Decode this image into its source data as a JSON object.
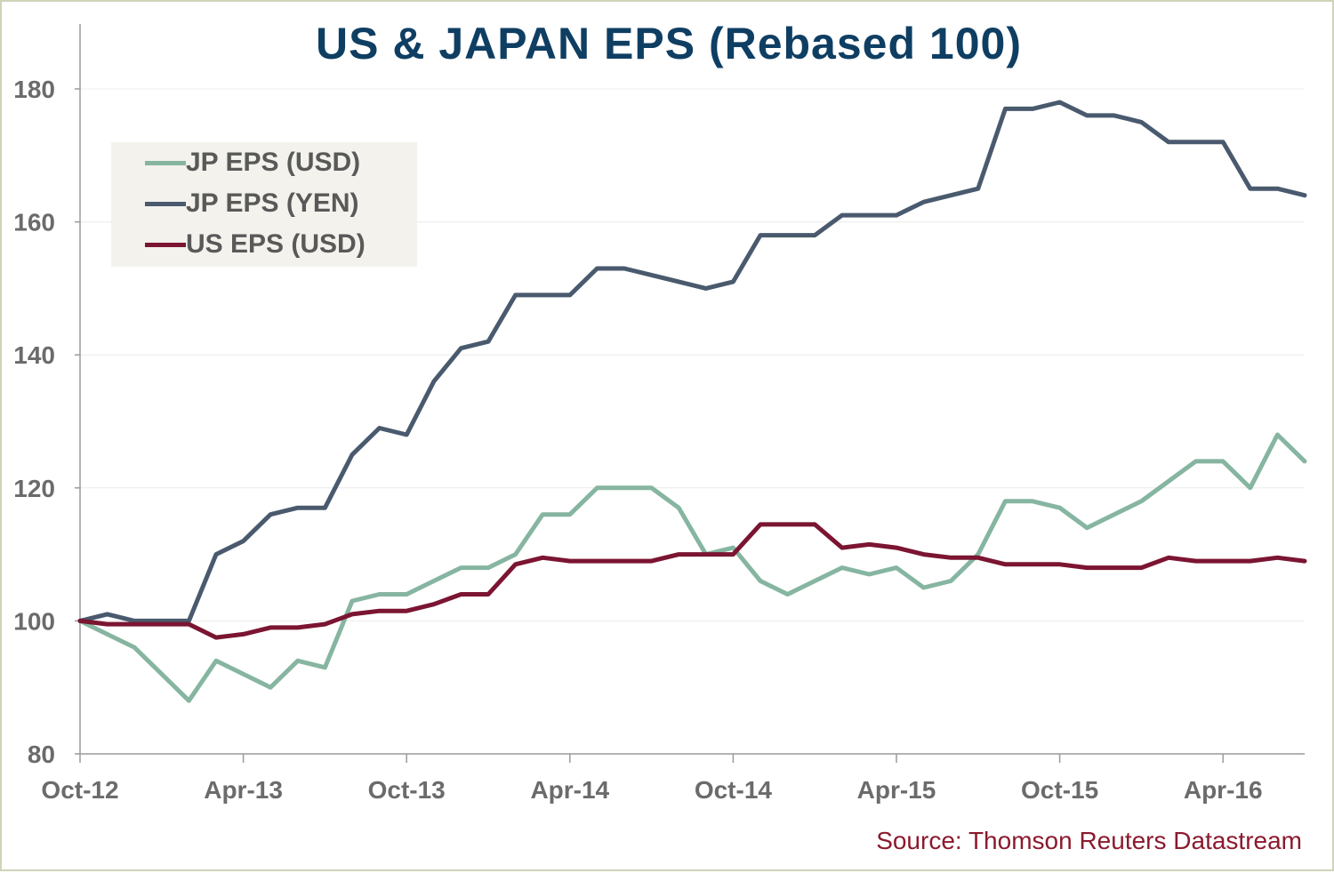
{
  "chart_data": {
    "type": "line",
    "title": "US & JAPAN EPS (Rebased 100)",
    "source": "Source: Thomson Reuters Datastream",
    "xlabel": "",
    "ylabel": "",
    "ylim": [
      80,
      180
    ],
    "yticks": [
      80,
      100,
      120,
      140,
      160,
      180
    ],
    "xlim": [
      "2012-10",
      "2016-07"
    ],
    "xticks": [
      {
        "label": "Oct-12",
        "x": "2012-10"
      },
      {
        "label": "Apr-13",
        "x": "2013-04"
      },
      {
        "label": "Oct-13",
        "x": "2013-10"
      },
      {
        "label": "Apr-14",
        "x": "2014-04"
      },
      {
        "label": "Oct-14",
        "x": "2014-10"
      },
      {
        "label": "Apr-15",
        "x": "2015-04"
      },
      {
        "label": "Oct-15",
        "x": "2015-10"
      },
      {
        "label": "Apr-16",
        "x": "2016-04"
      }
    ],
    "grid": true,
    "legend_position": "top-left",
    "series": [
      {
        "name": "JP EPS (USD)",
        "color": "#86b5a1",
        "points": [
          [
            "2012-10",
            100
          ],
          [
            "2012-11",
            98
          ],
          [
            "2012-12",
            96
          ],
          [
            "2013-01",
            92
          ],
          [
            "2013-02",
            88
          ],
          [
            "2013-03",
            94
          ],
          [
            "2013-04",
            92
          ],
          [
            "2013-05",
            90
          ],
          [
            "2013-06",
            94
          ],
          [
            "2013-07",
            93
          ],
          [
            "2013-08",
            103
          ],
          [
            "2013-09",
            104
          ],
          [
            "2013-10",
            104
          ],
          [
            "2013-11",
            106
          ],
          [
            "2013-12",
            108
          ],
          [
            "2014-01",
            108
          ],
          [
            "2014-02",
            110
          ],
          [
            "2014-03",
            116
          ],
          [
            "2014-04",
            116
          ],
          [
            "2014-05",
            120
          ],
          [
            "2014-06",
            120
          ],
          [
            "2014-07",
            120
          ],
          [
            "2014-08",
            117
          ],
          [
            "2014-09",
            110
          ],
          [
            "2014-10",
            111
          ],
          [
            "2014-11",
            106
          ],
          [
            "2014-12",
            104
          ],
          [
            "2015-01",
            106
          ],
          [
            "2015-02",
            108
          ],
          [
            "2015-03",
            107
          ],
          [
            "2015-04",
            108
          ],
          [
            "2015-05",
            105
          ],
          [
            "2015-06",
            106
          ],
          [
            "2015-07",
            110
          ],
          [
            "2015-08",
            118
          ],
          [
            "2015-09",
            118
          ],
          [
            "2015-10",
            117
          ],
          [
            "2015-11",
            114
          ],
          [
            "2015-12",
            116
          ],
          [
            "2016-01",
            118
          ],
          [
            "2016-02",
            121
          ],
          [
            "2016-03",
            124
          ],
          [
            "2016-04",
            124
          ],
          [
            "2016-05",
            120
          ],
          [
            "2016-06",
            128
          ],
          [
            "2016-07",
            124
          ]
        ]
      },
      {
        "name": "JP EPS (YEN)",
        "color": "#4a5a6e",
        "points": [
          [
            "2012-10",
            100
          ],
          [
            "2012-11",
            101
          ],
          [
            "2012-12",
            100
          ],
          [
            "2013-01",
            100
          ],
          [
            "2013-02",
            100
          ],
          [
            "2013-03",
            110
          ],
          [
            "2013-04",
            112
          ],
          [
            "2013-05",
            116
          ],
          [
            "2013-06",
            117
          ],
          [
            "2013-07",
            117
          ],
          [
            "2013-08",
            125
          ],
          [
            "2013-09",
            129
          ],
          [
            "2013-10",
            128
          ],
          [
            "2013-11",
            136
          ],
          [
            "2013-12",
            141
          ],
          [
            "2014-01",
            142
          ],
          [
            "2014-02",
            149
          ],
          [
            "2014-03",
            149
          ],
          [
            "2014-04",
            149
          ],
          [
            "2014-05",
            153
          ],
          [
            "2014-06",
            153
          ],
          [
            "2014-07",
            152
          ],
          [
            "2014-08",
            151
          ],
          [
            "2014-09",
            150
          ],
          [
            "2014-10",
            151
          ],
          [
            "2014-11",
            158
          ],
          [
            "2014-12",
            158
          ],
          [
            "2015-01",
            158
          ],
          [
            "2015-02",
            161
          ],
          [
            "2015-03",
            161
          ],
          [
            "2015-04",
            161
          ],
          [
            "2015-05",
            163
          ],
          [
            "2015-06",
            164
          ],
          [
            "2015-07",
            165
          ],
          [
            "2015-08",
            177
          ],
          [
            "2015-09",
            177
          ],
          [
            "2015-10",
            178
          ],
          [
            "2015-11",
            176
          ],
          [
            "2015-12",
            176
          ],
          [
            "2016-01",
            175
          ],
          [
            "2016-02",
            172
          ],
          [
            "2016-03",
            172
          ],
          [
            "2016-04",
            172
          ],
          [
            "2016-05",
            165
          ],
          [
            "2016-06",
            165
          ],
          [
            "2016-07",
            164
          ]
        ]
      },
      {
        "name": "US EPS (USD)",
        "color": "#7b1531",
        "points": [
          [
            "2012-10",
            100
          ],
          [
            "2012-11",
            99.5
          ],
          [
            "2012-12",
            99.5
          ],
          [
            "2013-01",
            99.5
          ],
          [
            "2013-02",
            99.5
          ],
          [
            "2013-03",
            97.5
          ],
          [
            "2013-04",
            98
          ],
          [
            "2013-05",
            99
          ],
          [
            "2013-06",
            99
          ],
          [
            "2013-07",
            99.5
          ],
          [
            "2013-08",
            101
          ],
          [
            "2013-09",
            101.5
          ],
          [
            "2013-10",
            101.5
          ],
          [
            "2013-11",
            102.5
          ],
          [
            "2013-12",
            104
          ],
          [
            "2014-01",
            104
          ],
          [
            "2014-02",
            108.5
          ],
          [
            "2014-03",
            109.5
          ],
          [
            "2014-04",
            109
          ],
          [
            "2014-05",
            109
          ],
          [
            "2014-06",
            109
          ],
          [
            "2014-07",
            109
          ],
          [
            "2014-08",
            110
          ],
          [
            "2014-09",
            110
          ],
          [
            "2014-10",
            110
          ],
          [
            "2014-11",
            114.5
          ],
          [
            "2014-12",
            114.5
          ],
          [
            "2015-01",
            114.5
          ],
          [
            "2015-02",
            111
          ],
          [
            "2015-03",
            111.5
          ],
          [
            "2015-04",
            111
          ],
          [
            "2015-05",
            110
          ],
          [
            "2015-06",
            109.5
          ],
          [
            "2015-07",
            109.5
          ],
          [
            "2015-08",
            108.5
          ],
          [
            "2015-09",
            108.5
          ],
          [
            "2015-10",
            108.5
          ],
          [
            "2015-11",
            108
          ],
          [
            "2015-12",
            108
          ],
          [
            "2016-01",
            108
          ],
          [
            "2016-02",
            109.5
          ],
          [
            "2016-03",
            109
          ],
          [
            "2016-04",
            109
          ],
          [
            "2016-05",
            109
          ],
          [
            "2016-06",
            109.5
          ],
          [
            "2016-07",
            109
          ]
        ]
      }
    ]
  }
}
